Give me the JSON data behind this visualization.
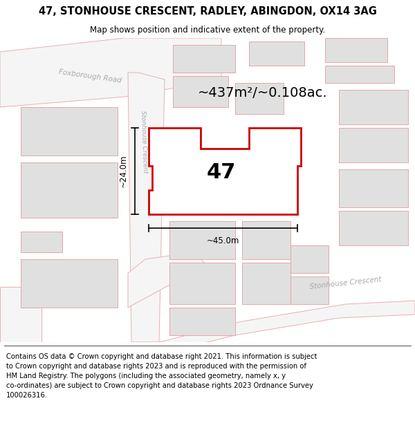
{
  "title": "47, STONHOUSE CRESCENT, RADLEY, ABINGDON, OX14 3AG",
  "subtitle": "Map shows position and indicative extent of the property.",
  "footer": "Contains OS data © Crown copyright and database right 2021. This information is subject\nto Crown copyright and database rights 2023 and is reproduced with the permission of\nHM Land Registry. The polygons (including the associated geometry, namely x, y\nco-ordinates) are subject to Crown copyright and database rights 2023 Ordnance Survey\n100026316.",
  "map_bg": "#f8f8f8",
  "road_line_color": "#e8b0b0",
  "building_fill": "#e0e0e0",
  "building_edge": "#cccccc",
  "bldg_outline_color": "#e8a0a0",
  "highlight_fill": "#ffffff",
  "highlight_edge": "#cc0000",
  "road_label_color": "#aaaaaa",
  "area_text": "~437m²/~0.108ac.",
  "number_text": "47",
  "dim_width": "~45.0m",
  "dim_height": "~24.0m",
  "road1_label": "Foxborough Road",
  "road2_label": "Stonhouse Crescent",
  "road3_label": "Stonhouse Crescent",
  "title_fontsize": 10.5,
  "subtitle_fontsize": 8.5,
  "footer_fontsize": 7.2,
  "area_fontsize": 14,
  "number_fontsize": 22,
  "dim_fontsize": 8.5
}
